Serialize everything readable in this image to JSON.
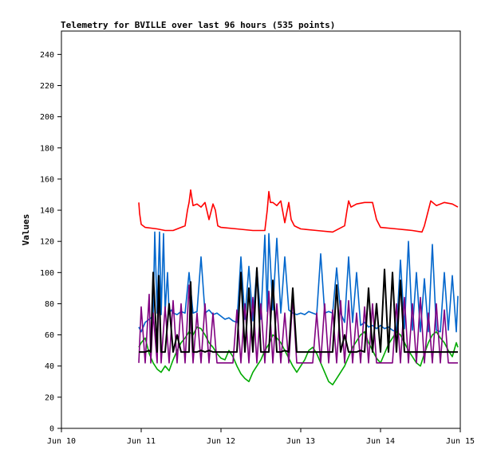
{
  "chart_data": {
    "type": "line",
    "title": "Telemetry for BVILLE over last 96 hours (535 points)",
    "xlabel": "",
    "ylabel": "Values",
    "xlim": [
      0,
      5
    ],
    "ylim": [
      0,
      255
    ],
    "x_tick_labels": [
      "Jun 10",
      "Jun 11",
      "Jun 12",
      "Jun 13",
      "Jun 14",
      "Jun 15"
    ],
    "y_ticks": [
      0,
      20,
      40,
      60,
      80,
      100,
      120,
      140,
      160,
      180,
      200,
      220,
      240
    ],
    "grid": false,
    "x_units": "days from Jun 10",
    "series": [
      {
        "color": "#ff0000",
        "x": [
          0.97,
          0.98,
          1.0,
          1.05,
          1.2,
          1.3,
          1.4,
          1.55,
          1.58,
          1.6,
          1.62,
          1.65,
          1.7,
          1.75,
          1.8,
          1.85,
          1.9,
          1.93,
          1.96,
          2.0,
          2.2,
          2.4,
          2.55,
          2.58,
          2.6,
          2.62,
          2.65,
          2.7,
          2.75,
          2.8,
          2.85,
          2.88,
          2.92,
          2.96,
          3.0,
          3.2,
          3.4,
          3.55,
          3.58,
          3.6,
          3.63,
          3.7,
          3.8,
          3.9,
          3.95,
          4.0,
          4.2,
          4.4,
          4.52,
          4.55,
          4.6,
          4.63,
          4.7,
          4.8,
          4.9,
          4.97
        ],
        "y": [
          145,
          138,
          131,
          129,
          128,
          127,
          127,
          130,
          140,
          145,
          153,
          143,
          144,
          142,
          145,
          134,
          144,
          140,
          130,
          129,
          128,
          127,
          127,
          140,
          152,
          145,
          145,
          143,
          146,
          132,
          145,
          134,
          130,
          129,
          128,
          127,
          126,
          130,
          140,
          146,
          142,
          144,
          145,
          145,
          134,
          129,
          128,
          127,
          126,
          130,
          140,
          146,
          143,
          145,
          144,
          142
        ]
      },
      {
        "color": "#0066cc",
        "x": [
          0.97,
          1.0,
          1.05,
          1.1,
          1.15,
          1.17,
          1.2,
          1.23,
          1.25,
          1.28,
          1.3,
          1.33,
          1.35,
          1.38,
          1.4,
          1.45,
          1.5,
          1.55,
          1.6,
          1.65,
          1.7,
          1.75,
          1.8,
          1.85,
          1.9,
          1.95,
          2.0,
          2.05,
          2.1,
          2.15,
          2.2,
          2.25,
          2.3,
          2.35,
          2.4,
          2.45,
          2.5,
          2.55,
          2.58,
          2.6,
          2.65,
          2.7,
          2.75,
          2.8,
          2.85,
          2.9,
          2.95,
          3.0,
          3.05,
          3.1,
          3.15,
          3.2,
          3.25,
          3.3,
          3.35,
          3.4,
          3.45,
          3.5,
          3.55,
          3.6,
          3.65,
          3.7,
          3.75,
          3.8,
          3.85,
          3.9,
          3.95,
          4.0,
          4.05,
          4.1,
          4.15,
          4.2,
          4.25,
          4.3,
          4.35,
          4.4,
          4.45,
          4.5,
          4.55,
          4.6,
          4.65,
          4.7,
          4.75,
          4.8,
          4.85,
          4.9,
          4.95,
          4.97
        ],
        "y": [
          65,
          62,
          68,
          70,
          72,
          126,
          74,
          126,
          73,
          125,
          75,
          100,
          74,
          76,
          74,
          73,
          75,
          74,
          100,
          74,
          75,
          110,
          74,
          76,
          73,
          74,
          72,
          70,
          71,
          69,
          68,
          110,
          70,
          104,
          69,
          103,
          70,
          124,
          75,
          125,
          76,
          122,
          74,
          110,
          76,
          74,
          73,
          74,
          73,
          75,
          74,
          73,
          112,
          74,
          75,
          74,
          103,
          74,
          68,
          110,
          68,
          100,
          66,
          68,
          65,
          66,
          64,
          66,
          64,
          65,
          63,
          62,
          108,
          64,
          120,
          63,
          100,
          62,
          96,
          62,
          118,
          63,
          62,
          100,
          63,
          98,
          62,
          85
        ]
      },
      {
        "color": "#00aa00",
        "x": [
          0.97,
          1.0,
          1.05,
          1.1,
          1.15,
          1.2,
          1.25,
          1.3,
          1.35,
          1.4,
          1.45,
          1.5,
          1.55,
          1.6,
          1.65,
          1.7,
          1.75,
          1.8,
          1.85,
          1.9,
          1.95,
          2.0,
          2.05,
          2.1,
          2.15,
          2.2,
          2.25,
          2.3,
          2.35,
          2.4,
          2.45,
          2.5,
          2.55,
          2.6,
          2.65,
          2.7,
          2.75,
          2.8,
          2.85,
          2.9,
          2.95,
          3.0,
          3.05,
          3.1,
          3.15,
          3.2,
          3.25,
          3.3,
          3.35,
          3.4,
          3.45,
          3.5,
          3.55,
          3.6,
          3.65,
          3.7,
          3.75,
          3.8,
          3.85,
          3.9,
          3.95,
          4.0,
          4.05,
          4.1,
          4.15,
          4.2,
          4.25,
          4.3,
          4.35,
          4.4,
          4.45,
          4.5,
          4.55,
          4.6,
          4.65,
          4.7,
          4.75,
          4.8,
          4.85,
          4.9,
          4.95,
          4.97
        ],
        "y": [
          52,
          55,
          58,
          48,
          42,
          38,
          36,
          40,
          37,
          44,
          50,
          55,
          58,
          62,
          60,
          65,
          64,
          60,
          55,
          52,
          48,
          45,
          44,
          50,
          46,
          40,
          35,
          32,
          30,
          36,
          40,
          44,
          50,
          54,
          60,
          58,
          55,
          50,
          45,
          40,
          36,
          40,
          44,
          50,
          52,
          48,
          42,
          36,
          30,
          28,
          32,
          36,
          40,
          46,
          52,
          56,
          60,
          62,
          55,
          50,
          45,
          42,
          48,
          54,
          58,
          62,
          60,
          55,
          50,
          46,
          42,
          40,
          48,
          55,
          60,
          62,
          58,
          55,
          50,
          46,
          55,
          52
        ]
      },
      {
        "color": "#800080",
        "x": [
          0.97,
          1.0,
          1.05,
          1.1,
          1.12,
          1.15,
          1.2,
          1.22,
          1.25,
          1.3,
          1.35,
          1.4,
          1.45,
          1.5,
          1.55,
          1.6,
          1.65,
          1.7,
          1.75,
          1.8,
          1.85,
          1.9,
          1.95,
          2.0,
          2.05,
          2.1,
          2.15,
          2.2,
          2.25,
          2.3,
          2.35,
          2.4,
          2.45,
          2.5,
          2.55,
          2.6,
          2.65,
          2.7,
          2.75,
          2.8,
          2.85,
          2.9,
          2.95,
          3.0,
          3.05,
          3.1,
          3.15,
          3.2,
          3.25,
          3.3,
          3.35,
          3.4,
          3.45,
          3.5,
          3.55,
          3.6,
          3.65,
          3.7,
          3.75,
          3.8,
          3.85,
          3.9,
          3.95,
          4.0,
          4.05,
          4.1,
          4.15,
          4.2,
          4.25,
          4.3,
          4.35,
          4.4,
          4.45,
          4.5,
          4.55,
          4.6,
          4.65,
          4.7,
          4.75,
          4.8,
          4.85,
          4.9,
          4.95,
          4.97
        ],
        "y": [
          42,
          78,
          42,
          86,
          42,
          74,
          42,
          90,
          42,
          78,
          42,
          82,
          42,
          80,
          42,
          92,
          42,
          74,
          42,
          80,
          42,
          74,
          42,
          42,
          42,
          42,
          42,
          76,
          42,
          80,
          42,
          84,
          42,
          80,
          42,
          88,
          42,
          80,
          42,
          74,
          42,
          84,
          42,
          42,
          42,
          42,
          42,
          74,
          42,
          80,
          42,
          76,
          42,
          82,
          42,
          82,
          42,
          74,
          42,
          78,
          42,
          80,
          42,
          42,
          42,
          42,
          42,
          80,
          42,
          84,
          42,
          80,
          42,
          84,
          42,
          74,
          42,
          80,
          42,
          76,
          42,
          42,
          42,
          42
        ]
      },
      {
        "color": "#000000",
        "x": [
          0.97,
          1.0,
          1.05,
          1.1,
          1.12,
          1.15,
          1.2,
          1.22,
          1.25,
          1.3,
          1.35,
          1.4,
          1.45,
          1.5,
          1.55,
          1.6,
          1.62,
          1.65,
          1.7,
          1.75,
          1.8,
          1.85,
          1.9,
          1.95,
          2.0,
          2.05,
          2.1,
          2.15,
          2.2,
          2.25,
          2.3,
          2.35,
          2.4,
          2.45,
          2.5,
          2.55,
          2.6,
          2.65,
          2.7,
          2.75,
          2.8,
          2.85,
          2.9,
          2.95,
          3.0,
          3.05,
          3.1,
          3.15,
          3.2,
          3.25,
          3.3,
          3.35,
          3.4,
          3.45,
          3.5,
          3.55,
          3.6,
          3.65,
          3.7,
          3.75,
          3.8,
          3.85,
          3.9,
          3.95,
          4.0,
          4.05,
          4.1,
          4.15,
          4.2,
          4.25,
          4.3,
          4.35,
          4.4,
          4.45,
          4.5,
          4.55,
          4.6,
          4.65,
          4.7,
          4.75,
          4.8,
          4.85,
          4.9,
          4.95,
          4.97
        ],
        "y": [
          49,
          49,
          49,
          50,
          49,
          100,
          49,
          98,
          49,
          49,
          80,
          49,
          60,
          49,
          49,
          49,
          94,
          49,
          49,
          50,
          49,
          50,
          49,
          49,
          49,
          49,
          49,
          49,
          49,
          100,
          49,
          90,
          49,
          103,
          49,
          49,
          49,
          95,
          49,
          49,
          50,
          49,
          90,
          49,
          49,
          49,
          49,
          49,
          49,
          49,
          49,
          49,
          49,
          92,
          49,
          60,
          49,
          49,
          49,
          50,
          49,
          90,
          49,
          80,
          49,
          102,
          49,
          100,
          49,
          95,
          49,
          49,
          49,
          49,
          49,
          49,
          49,
          49,
          49,
          49,
          49,
          49,
          49,
          49,
          49
        ]
      }
    ]
  }
}
